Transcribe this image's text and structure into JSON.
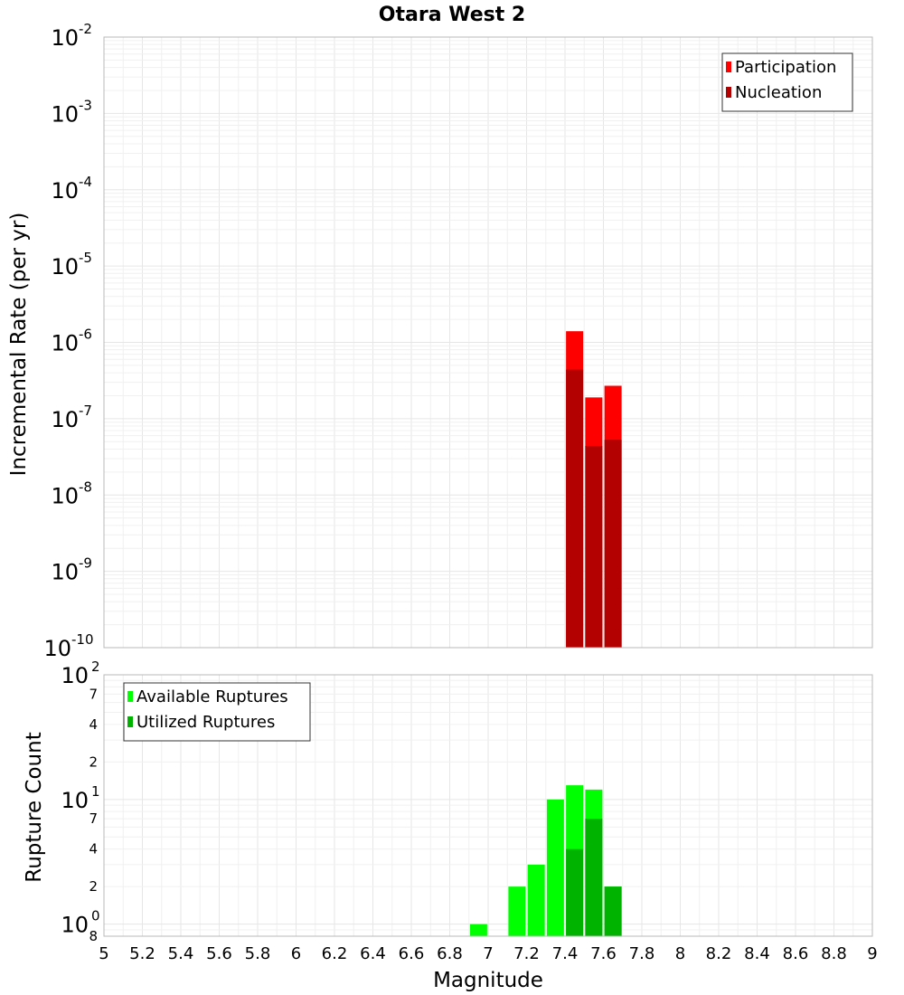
{
  "title": "Otara West 2",
  "chart_data": [
    {
      "type": "bar",
      "name": "rate-panel",
      "ylabel": "Incremental Rate (per yr)",
      "yscale": "log",
      "ylim": [
        1e-10,
        0.01
      ],
      "xlim": [
        5,
        9
      ],
      "legend_position": "top-right",
      "y_ticks": [
        {
          "base": "10",
          "exp": "-10"
        },
        {
          "base": "10",
          "exp": "-9"
        },
        {
          "base": "10",
          "exp": "-8"
        },
        {
          "base": "10",
          "exp": "-7"
        },
        {
          "base": "10",
          "exp": "-6"
        },
        {
          "base": "10",
          "exp": "-5"
        },
        {
          "base": "10",
          "exp": "-4"
        },
        {
          "base": "10",
          "exp": "-3"
        },
        {
          "base": "10",
          "exp": "-2"
        }
      ],
      "series": [
        {
          "name": "Participation",
          "color": "#ff0000",
          "points": [
            {
              "x": 7.45,
              "y": 1.4e-06
            },
            {
              "x": 7.55,
              "y": 1.9e-07
            },
            {
              "x": 7.65,
              "y": 2.7e-07
            }
          ]
        },
        {
          "name": "Nucleation",
          "color": "#b30000",
          "points": [
            {
              "x": 7.45,
              "y": 4.4e-07
            },
            {
              "x": 7.55,
              "y": 4.4e-08
            },
            {
              "x": 7.65,
              "y": 5.3e-08
            }
          ]
        }
      ]
    },
    {
      "type": "bar",
      "name": "count-panel",
      "ylabel": "Rupture Count",
      "xlabel": "Magnitude",
      "yscale": "log",
      "ylim": [
        0.8,
        100
      ],
      "xlim": [
        5,
        9
      ],
      "legend_position": "top-left",
      "x_ticks": [
        "5",
        "5.2",
        "5.4",
        "5.6",
        "5.8",
        "6",
        "6.2",
        "6.4",
        "6.6",
        "6.8",
        "7",
        "7.2",
        "7.4",
        "7.6",
        "7.8",
        "8",
        "8.2",
        "8.4",
        "8.6",
        "8.8",
        "9"
      ],
      "y_major_ticks": [
        {
          "value": 1,
          "base": "10",
          "exp": "0"
        },
        {
          "value": 10,
          "base": "10",
          "exp": "1"
        },
        {
          "value": 100,
          "base": "10",
          "exp": "2"
        }
      ],
      "y_minor_ticks": [
        {
          "value": 0.8,
          "label": "8"
        },
        {
          "value": 2,
          "label": "2"
        },
        {
          "value": 4,
          "label": "4"
        },
        {
          "value": 7,
          "label": "7"
        },
        {
          "value": 20,
          "label": "2"
        },
        {
          "value": 40,
          "label": "4"
        },
        {
          "value": 70,
          "label": "7"
        }
      ],
      "series": [
        {
          "name": "Available Ruptures",
          "color": "#00ff00",
          "points": [
            {
              "x": 6.95,
              "y": 1
            },
            {
              "x": 7.15,
              "y": 2
            },
            {
              "x": 7.25,
              "y": 3
            },
            {
              "x": 7.35,
              "y": 10
            },
            {
              "x": 7.45,
              "y": 13
            },
            {
              "x": 7.55,
              "y": 12
            },
            {
              "x": 7.65,
              "y": 2
            }
          ]
        },
        {
          "name": "Utilized Ruptures",
          "color": "#00b300",
          "points": [
            {
              "x": 7.45,
              "y": 4
            },
            {
              "x": 7.55,
              "y": 7
            },
            {
              "x": 7.65,
              "y": 2
            }
          ]
        }
      ]
    }
  ]
}
